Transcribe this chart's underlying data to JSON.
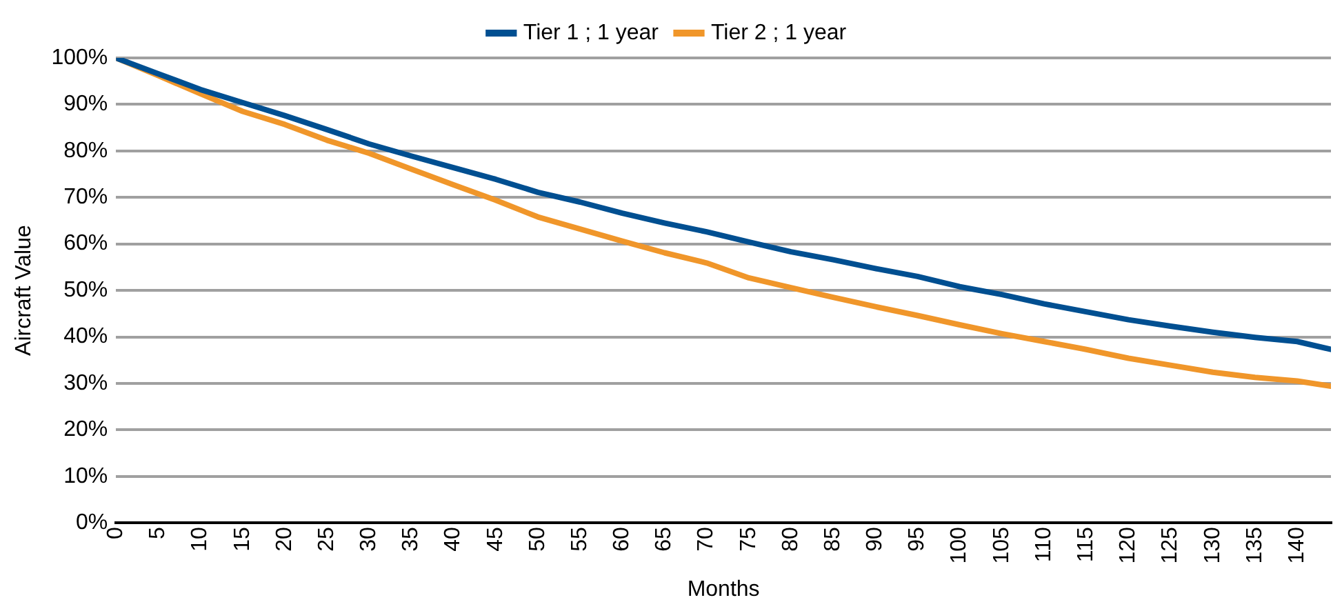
{
  "chart_data": {
    "type": "line",
    "xlabel": "Months",
    "ylabel": "Aircraft Value",
    "x": [
      0,
      5,
      10,
      15,
      20,
      25,
      30,
      35,
      40,
      45,
      50,
      55,
      60,
      65,
      70,
      75,
      80,
      85,
      90,
      95,
      100,
      105,
      110,
      115,
      120,
      125,
      130,
      135,
      140,
      144
    ],
    "series": [
      {
        "name": "Tier 1 ; 1 year",
        "color": "#004f91",
        "values": [
          100,
          96.6,
          93.2,
          90.4,
          87.6,
          84.6,
          81.5,
          78.9,
          76.4,
          73.9,
          71.1,
          69.0,
          66.6,
          64.5,
          62.6,
          60.4,
          58.3,
          56.6,
          54.7,
          53.0,
          50.8,
          49.1,
          47.1,
          45.4,
          43.7,
          42.3,
          41.0,
          39.9,
          39.0,
          37.3
        ]
      },
      {
        "name": "Tier 2 ; 1 year",
        "color": "#f0962a",
        "values": [
          100,
          96.2,
          92.3,
          88.5,
          85.7,
          82.3,
          79.5,
          76.1,
          72.7,
          69.4,
          65.8,
          63.2,
          60.6,
          58.1,
          55.9,
          52.7,
          50.6,
          48.5,
          46.5,
          44.6,
          42.6,
          40.7,
          39.0,
          37.3,
          35.4,
          33.9,
          32.4,
          31.3,
          30.5,
          29.4
        ]
      }
    ],
    "xlim": [
      0,
      144
    ],
    "xticks": [
      0,
      5,
      10,
      15,
      20,
      25,
      30,
      35,
      40,
      45,
      50,
      55,
      60,
      65,
      70,
      75,
      80,
      85,
      90,
      95,
      100,
      105,
      110,
      115,
      120,
      125,
      130,
      135,
      140
    ],
    "ylim": [
      0,
      100
    ],
    "yticks": [
      {
        "value": 0,
        "label": "0%"
      },
      {
        "value": 10,
        "label": "10%"
      },
      {
        "value": 20,
        "label": "20%"
      },
      {
        "value": 30,
        "label": "30%"
      },
      {
        "value": 40,
        "label": "40%"
      },
      {
        "value": 50,
        "label": "50%"
      },
      {
        "value": 60,
        "label": "60%"
      },
      {
        "value": 70,
        "label": "70%"
      },
      {
        "value": 80,
        "label": "80%"
      },
      {
        "value": 90,
        "label": "90%"
      },
      {
        "value": 100,
        "label": "100%"
      }
    ],
    "grid": "y",
    "legend": "top",
    "marker": "none",
    "line_style": "solid"
  }
}
